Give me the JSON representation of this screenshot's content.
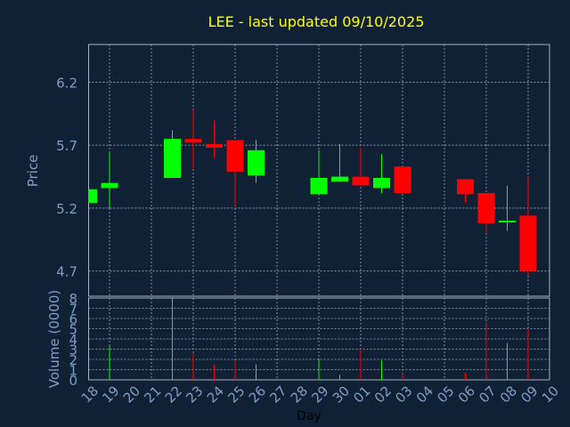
{
  "chart_data": [
    {
      "type": "candlestick",
      "title": "LEE - last updated 09/10/2025",
      "ylabel": "Price",
      "xlabel": "",
      "ylim": [
        4.5,
        6.5
      ],
      "yticks": [
        "4.7",
        "5.2",
        "5.7",
        "6.2"
      ],
      "grid": true,
      "candles": [
        {
          "day": "18",
          "open": 5.24,
          "close": 5.35,
          "high": 5.35,
          "low": 5.24
        },
        {
          "day": "19",
          "open": 5.36,
          "close": 5.4,
          "high": 5.64,
          "low": 5.2
        },
        {
          "day": "22",
          "open": 5.44,
          "close": 5.75,
          "high": 5.82,
          "low": 5.44
        },
        {
          "day": "23",
          "open": 5.75,
          "close": 5.72,
          "high": 5.98,
          "low": 5.52
        },
        {
          "day": "24",
          "open": 5.71,
          "close": 5.68,
          "high": 5.9,
          "low": 5.6
        },
        {
          "day": "25",
          "open": 5.74,
          "close": 5.49,
          "high": 5.74,
          "low": 5.22
        },
        {
          "day": "26",
          "open": 5.46,
          "close": 5.66,
          "high": 5.74,
          "low": 5.4
        },
        {
          "day": "29",
          "open": 5.31,
          "close": 5.44,
          "high": 5.66,
          "low": 5.31
        },
        {
          "day": "30",
          "open": 5.41,
          "close": 5.45,
          "high": 5.71,
          "low": 5.41
        },
        {
          "day": "01",
          "open": 5.45,
          "close": 5.38,
          "high": 5.68,
          "low": 5.38
        },
        {
          "day": "02",
          "open": 5.36,
          "close": 5.44,
          "high": 5.63,
          "low": 5.32
        },
        {
          "day": "03",
          "open": 5.53,
          "close": 5.32,
          "high": 5.53,
          "low": 5.32
        },
        {
          "day": "06",
          "open": 5.43,
          "close": 5.31,
          "high": 5.43,
          "low": 5.24
        },
        {
          "day": "07",
          "open": 5.32,
          "close": 5.08,
          "high": 5.32,
          "low": 5.0
        },
        {
          "day": "08",
          "open": 5.09,
          "close": 5.1,
          "high": 5.38,
          "low": 5.02
        },
        {
          "day": "09",
          "open": 5.14,
          "close": 4.7,
          "high": 5.45,
          "low": 4.66
        }
      ]
    },
    {
      "type": "bar",
      "ylabel": "Volume (0000)",
      "xlabel": "Day",
      "ylim": [
        0,
        8
      ],
      "yticks": [
        "0",
        "1",
        "2",
        "3",
        "4",
        "5",
        "6",
        "7",
        "8"
      ],
      "categories": [
        "18",
        "19",
        "20",
        "21",
        "22",
        "23",
        "24",
        "25",
        "26",
        "27",
        "28",
        "29",
        "30",
        "01",
        "02",
        "03",
        "04",
        "05",
        "06",
        "07",
        "08",
        "09",
        "10"
      ],
      "values": [
        0,
        3.3,
        0,
        0,
        8.0,
        2.6,
        1.5,
        1.9,
        1.5,
        0,
        0,
        2.1,
        0.5,
        3.0,
        1.9,
        0.6,
        0,
        0,
        0.7,
        5.6,
        3.6,
        5.0,
        0
      ],
      "colors": [
        "",
        "#00ff00",
        "",
        "",
        "#00ff00",
        "#ff0000",
        "#ff0000",
        "#ff0000",
        "#00ff00",
        "",
        "",
        "#00ff00",
        "#00ff00",
        "#ff0000",
        "#00ff00",
        "#ff0000",
        "",
        "",
        "#ff0000",
        "#ff0000",
        "#00ff00",
        "#ff0000",
        ""
      ]
    }
  ],
  "colors": {
    "background": "#102035",
    "up": "#00ff00",
    "down": "#ff0000",
    "title": "#ffff00",
    "axis_text": "#7e9ec6",
    "grid": "#9aa8b8",
    "frame": "#a8b4c4"
  }
}
